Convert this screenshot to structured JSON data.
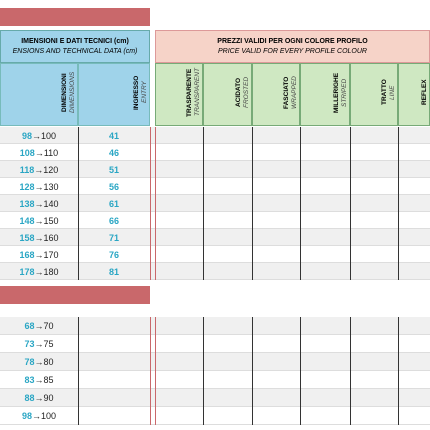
{
  "left_header": {
    "title": "IMENSIONI E DATI TECNICI (cm)",
    "subtitle": "ENSIONS AND TECHNICAL DATA (cm)"
  },
  "right_header": {
    "title": "PREZZI VALIDI PER OGNI COLORE PROFILO",
    "subtitle": "PRICE VALID FOR EVERY PROFILE COLOUR"
  },
  "left_columns": [
    {
      "title": "DIMENSIONI",
      "subtitle": "DIMENSIONS"
    },
    {
      "title": "INGRESSO",
      "subtitle": "ENTRY"
    }
  ],
  "columns": [
    {
      "title": "TRASPARENTE",
      "subtitle": "TRANSPARENT"
    },
    {
      "title": "ACIDATO",
      "subtitle": "FROSTED"
    },
    {
      "title": "FASCIATO",
      "subtitle": "WRAPPED"
    },
    {
      "title": "MILLERIGHE",
      "subtitle": "STRIPED"
    },
    {
      "title": "TRATTO",
      "subtitle": "LINE"
    },
    {
      "title": "REFLEX"
    }
  ],
  "section1": [
    {
      "size": "98",
      "range": "→100",
      "entry": "41"
    },
    {
      "size": "108",
      "range": "→110",
      "entry": "46"
    },
    {
      "size": "118",
      "range": "→120",
      "entry": "51"
    },
    {
      "size": "128",
      "range": "→130",
      "entry": "56"
    },
    {
      "size": "138",
      "range": "→140",
      "entry": "61"
    },
    {
      "size": "148",
      "range": "→150",
      "entry": "66"
    },
    {
      "size": "158",
      "range": "→160",
      "entry": "71"
    },
    {
      "size": "168",
      "range": "→170",
      "entry": "76"
    },
    {
      "size": "178",
      "range": "→180",
      "entry": "81"
    }
  ],
  "section2": [
    {
      "size": "68",
      "range": "→70"
    },
    {
      "size": "73",
      "range": "→75"
    },
    {
      "size": "78",
      "range": "→80"
    },
    {
      "size": "83",
      "range": "→85"
    },
    {
      "size": "88",
      "range": "→90"
    },
    {
      "size": "98",
      "range": "→100"
    }
  ]
}
